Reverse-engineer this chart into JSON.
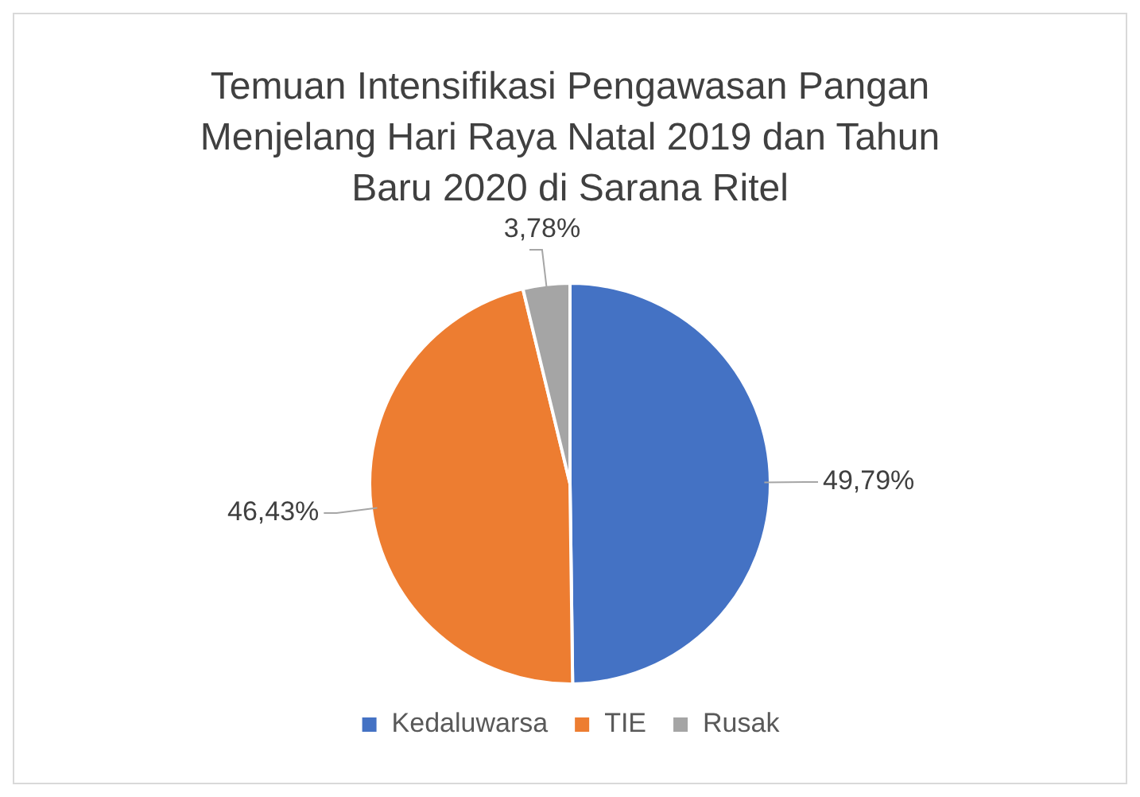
{
  "chart_data": {
    "type": "pie",
    "title": "Temuan Intensifikasi Pengawasan Pangan Menjelang Hari Raya Natal 2019 dan Tahun Baru 2020 di Sarana Ritel",
    "categories": [
      "Kedaluwarsa",
      "TIE",
      "Rusak"
    ],
    "values": [
      49.79,
      46.43,
      3.78
    ],
    "colors": [
      "#4472c4",
      "#ed7d31",
      "#a5a5a5"
    ],
    "value_labels": [
      "49,79%",
      "46,43%",
      "3,78%"
    ],
    "legend": "bottom"
  }
}
